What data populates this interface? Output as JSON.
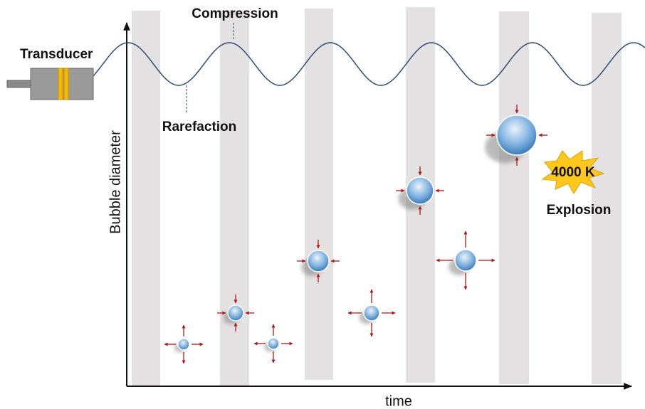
{
  "labels": {
    "transducer": "Transducer",
    "compression": "Compression",
    "rarefaction": "Rarefaction",
    "y_axis": "Bubble diameter",
    "x_axis": "time",
    "temperature": "4000 K",
    "explosion": "Explosion"
  }
}
